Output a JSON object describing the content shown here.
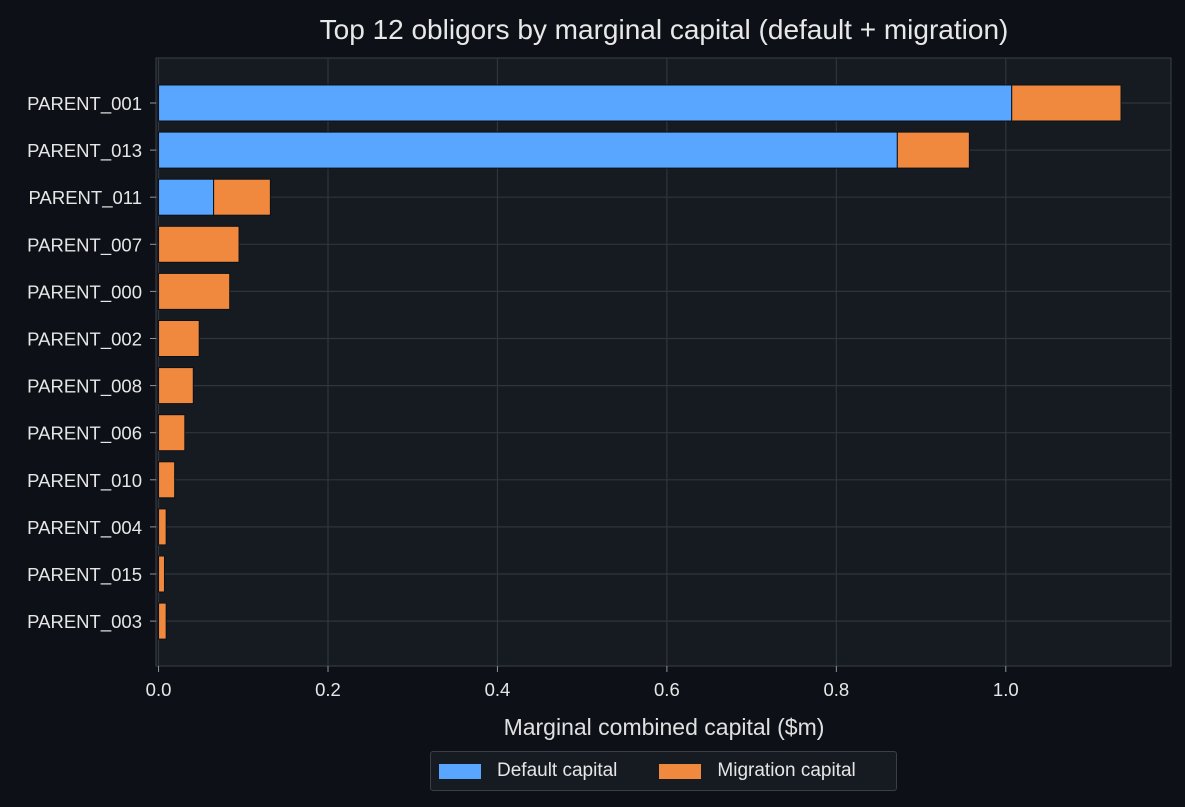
{
  "chart_data": {
    "type": "bar",
    "orientation": "horizontal",
    "stacked": true,
    "title": "Top 12 obligors by marginal capital (default + migration)",
    "xlabel": "Marginal combined capital ($m)",
    "ylabel": "",
    "xlim": [
      -0.003,
      1.195
    ],
    "xticks": [
      0.0,
      0.2,
      0.4,
      0.6,
      0.8,
      1.0
    ],
    "xtick_labels": [
      "0.0",
      "0.2",
      "0.4",
      "0.6",
      "0.8",
      "1.0"
    ],
    "grid": true,
    "legend_position": "bottom-center",
    "categories": [
      "PARENT_001",
      "PARENT_013",
      "PARENT_011",
      "PARENT_007",
      "PARENT_000",
      "PARENT_002",
      "PARENT_008",
      "PARENT_006",
      "PARENT_010",
      "PARENT_004",
      "PARENT_015",
      "PARENT_003"
    ],
    "series": [
      {
        "name": "Default capital",
        "color": "#58a6ff",
        "values": [
          1.007,
          0.872,
          0.065,
          0.0,
          0.0,
          0.0,
          0.0,
          0.0,
          0.0,
          0.0,
          0.0,
          0.0
        ]
      },
      {
        "name": "Migration capital",
        "color": "#f0883e",
        "values": [
          0.129,
          0.085,
          0.067,
          0.095,
          0.084,
          0.048,
          0.041,
          0.031,
          0.019,
          0.009,
          0.007,
          0.009
        ]
      }
    ]
  },
  "colors": {
    "background": "#0d1117",
    "plot_background": "#161b22",
    "grid": "#2f353d",
    "axis_spine": "#3a3f47",
    "text": "#e6e6e6"
  }
}
